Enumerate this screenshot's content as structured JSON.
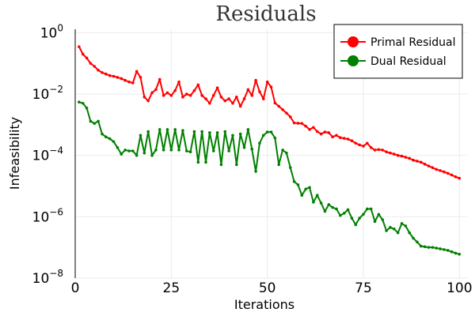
{
  "chart_data": {
    "type": "line",
    "title": "Residuals",
    "xlabel": "Iterations",
    "ylabel": "Infeasibility",
    "y_scale": "log10",
    "xlim": [
      0,
      102
    ],
    "ylim": [
      1e-08,
      1.3
    ],
    "grid": true,
    "legend_position": "top-right",
    "x_ticks": [
      {
        "value": 0,
        "label": "0"
      },
      {
        "value": 25,
        "label": "25"
      },
      {
        "value": 50,
        "label": "50"
      },
      {
        "value": 75,
        "label": "75"
      },
      {
        "value": 100,
        "label": "100"
      }
    ],
    "y_ticks": [
      {
        "value": 1,
        "base": "10",
        "exp": "0"
      },
      {
        "value": 0.01,
        "base": "10",
        "exp": "−2"
      },
      {
        "value": 0.0001,
        "base": "10",
        "exp": "−4"
      },
      {
        "value": 1e-06,
        "base": "10",
        "exp": "−6"
      },
      {
        "value": 1e-08,
        "base": "10",
        "exp": "−8"
      }
    ],
    "x": [
      1,
      2,
      3,
      4,
      5,
      6,
      7,
      8,
      9,
      10,
      11,
      12,
      13,
      14,
      15,
      16,
      17,
      18,
      19,
      20,
      21,
      22,
      23,
      24,
      25,
      26,
      27,
      28,
      29,
      30,
      31,
      32,
      33,
      34,
      35,
      36,
      37,
      38,
      39,
      40,
      41,
      42,
      43,
      44,
      45,
      46,
      47,
      48,
      49,
      50,
      51,
      52,
      53,
      54,
      55,
      56,
      57,
      58,
      59,
      60,
      61,
      62,
      63,
      64,
      65,
      66,
      67,
      68,
      69,
      70,
      71,
      72,
      73,
      74,
      75,
      76,
      77,
      78,
      79,
      80,
      81,
      82,
      83,
      84,
      85,
      86,
      87,
      88,
      89,
      90,
      91,
      92,
      93,
      94,
      95,
      96,
      97,
      98,
      99,
      100
    ],
    "series": [
      {
        "name": "Primal Residual",
        "color": "#ff0000",
        "values": [
          0.35,
          0.2,
          0.15,
          0.1,
          0.08,
          0.06,
          0.05,
          0.045,
          0.04,
          0.038,
          0.035,
          0.032,
          0.028,
          0.025,
          0.023,
          0.055,
          0.035,
          0.008,
          0.006,
          0.011,
          0.014,
          0.03,
          0.009,
          0.011,
          0.009,
          0.013,
          0.025,
          0.008,
          0.01,
          0.009,
          0.013,
          0.02,
          0.009,
          0.007,
          0.005,
          0.009,
          0.016,
          0.008,
          0.006,
          0.007,
          0.005,
          0.008,
          0.004,
          0.007,
          0.014,
          0.009,
          0.028,
          0.012,
          0.007,
          0.025,
          0.017,
          0.0051,
          0.004,
          0.0031,
          0.0024,
          0.0018,
          0.00114,
          0.00112,
          0.0011,
          0.0009,
          0.0007,
          0.00082,
          0.0006,
          0.0005,
          0.00058,
          0.00055,
          0.0004,
          0.00045,
          0.00038,
          0.00036,
          0.00034,
          0.0003,
          0.00025,
          0.00022,
          0.0002,
          0.00025,
          0.00018,
          0.00015,
          0.000155,
          0.00015,
          0.00013,
          0.00012,
          0.00011,
          0.0001,
          9.5e-05,
          8.7e-05,
          8e-05,
          7e-05,
          6.5e-05,
          6e-05,
          5.2e-05,
          4.5e-05,
          4e-05,
          3.5e-05,
          3.2e-05,
          2.9e-05,
          2.6e-05,
          2.3e-05,
          2e-05,
          1.8e-05
        ]
      },
      {
        "name": "Dual Residual",
        "color": "#008000",
        "values": [
          0.0055,
          0.005,
          0.0035,
          0.0013,
          0.0011,
          0.0013,
          0.0005,
          0.0004,
          0.00035,
          0.00028,
          0.00018,
          0.00011,
          0.00015,
          0.00014,
          0.00014,
          0.0001,
          0.00045,
          0.00012,
          0.0006,
          0.0001,
          0.00015,
          0.0007,
          0.00015,
          0.0007,
          0.00015,
          0.0007,
          0.00015,
          0.00065,
          0.00014,
          0.00013,
          0.0006,
          6e-05,
          0.0006,
          6e-05,
          0.00055,
          0.00014,
          0.00055,
          5e-05,
          0.0006,
          0.00014,
          0.00045,
          5e-05,
          0.0005,
          0.00018,
          0.0007,
          0.00016,
          3e-05,
          0.00025,
          0.00045,
          0.00058,
          0.00058,
          0.00037,
          5e-05,
          0.00015,
          0.00012,
          4e-05,
          1.4e-05,
          1.1e-05,
          5e-06,
          8e-06,
          9e-06,
          3e-06,
          5e-06,
          2.8e-06,
          1.5e-06,
          2.5e-06,
          2e-06,
          1.8e-06,
          1.1e-06,
          1.3e-06,
          1.7e-06,
          9e-07,
          5.5e-07,
          9e-07,
          1.2e-06,
          1.8e-06,
          1.8e-06,
          7e-07,
          1.2e-06,
          8e-07,
          3.5e-07,
          4.5e-07,
          4e-07,
          3e-07,
          6e-07,
          5e-07,
          3e-07,
          2e-07,
          1.5e-07,
          1.1e-07,
          1.05e-07,
          1e-07,
          1e-07,
          9.5e-08,
          9e-08,
          8.5e-08,
          8e-08,
          7.2e-08,
          6.5e-08,
          6e-08
        ]
      }
    ]
  }
}
